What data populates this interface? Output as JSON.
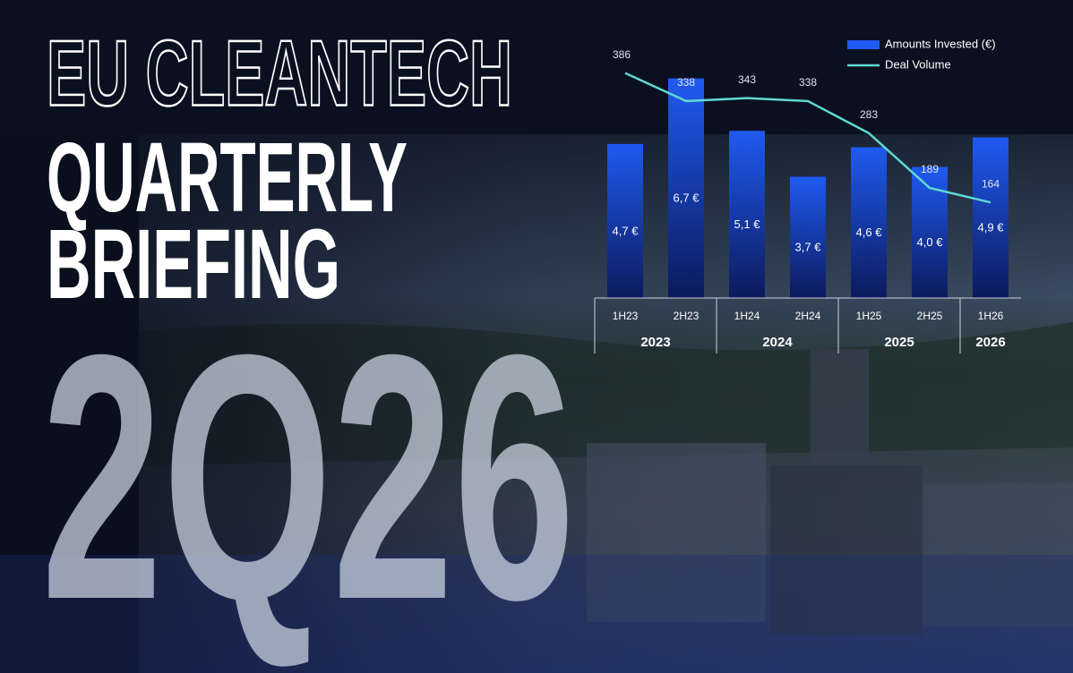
{
  "header": {
    "line1": "EU CLEANTECH",
    "line2": "QUARTERLY",
    "line3": "BRIEFING",
    "edition": "2Q26"
  },
  "chart_data": {
    "type": "bar-line",
    "categories": [
      "1H23",
      "2H23",
      "1H24",
      "2H24",
      "1H25",
      "2H25",
      "1H26"
    ],
    "groups": [
      {
        "label": "2023",
        "span": 2
      },
      {
        "label": "2024",
        "span": 2
      },
      {
        "label": "2025",
        "span": 2
      },
      {
        "label": "2026",
        "span": 1
      }
    ],
    "series": [
      {
        "name": "Amounts Invested (€)",
        "color": "#1f5af0",
        "values": [
          4.7,
          6.7,
          5.1,
          3.7,
          4.6,
          4.0,
          4.9
        ],
        "value_labels": [
          "4,7 €",
          "6,7 €",
          "5,1 €",
          "3,7 €",
          "4,6 €",
          "4,0 €",
          "4,9 €"
        ]
      },
      {
        "name": "Deal Volume",
        "color": "#5fd8d2",
        "axis": "y2",
        "values": [
          386,
          338,
          343,
          338,
          283,
          189,
          164
        ]
      }
    ],
    "ylim": [
      0,
      8
    ],
    "y2lim": [
      0,
      450
    ]
  }
}
